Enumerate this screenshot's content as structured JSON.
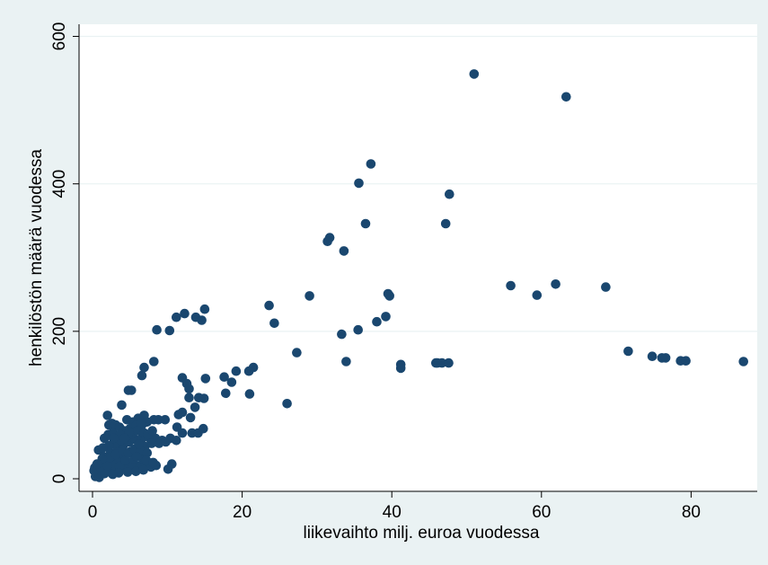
{
  "chart_data": {
    "type": "scatter",
    "title": "",
    "xlabel": "liikevaihto milj. euroa vuodessa",
    "ylabel": "henkilöstön määrä vuodessa",
    "xlim": [
      0,
      90
    ],
    "ylim": [
      0,
      600
    ],
    "x_ticks": [
      0,
      20,
      40,
      60,
      80
    ],
    "y_ticks": [
      0,
      200,
      400,
      600
    ],
    "x_tick_labels": [
      "0",
      "20",
      "40",
      "60",
      "80"
    ],
    "y_tick_labels": [
      "0",
      "200",
      "400",
      "600"
    ],
    "grid": true,
    "colors": {
      "points": "#1a476f",
      "background": "#eaf2f3",
      "plot_area": "#ffffff"
    },
    "series": [
      {
        "points": [
          [
            51.0,
            549
          ],
          [
            63.3,
            518
          ],
          [
            37.2,
            427
          ],
          [
            35.6,
            401
          ],
          [
            47.7,
            386
          ],
          [
            47.2,
            346
          ],
          [
            36.5,
            346
          ],
          [
            31.7,
            327
          ],
          [
            31.4,
            322
          ],
          [
            33.6,
            309
          ],
          [
            55.9,
            262
          ],
          [
            59.4,
            249
          ],
          [
            61.9,
            264
          ],
          [
            68.6,
            260
          ],
          [
            39.5,
            251
          ],
          [
            39.7,
            248
          ],
          [
            29.0,
            248
          ],
          [
            23.6,
            235
          ],
          [
            24.3,
            211
          ],
          [
            39.2,
            220
          ],
          [
            38.0,
            213
          ],
          [
            35.5,
            202
          ],
          [
            33.3,
            196
          ],
          [
            15.0,
            230
          ],
          [
            12.3,
            224
          ],
          [
            11.2,
            219
          ],
          [
            13.8,
            219
          ],
          [
            14.6,
            215
          ],
          [
            8.6,
            202
          ],
          [
            10.3,
            201
          ],
          [
            71.6,
            173
          ],
          [
            74.8,
            166
          ],
          [
            76.1,
            164
          ],
          [
            76.6,
            164
          ],
          [
            78.6,
            160
          ],
          [
            79.3,
            160
          ],
          [
            87.0,
            159
          ],
          [
            45.9,
            157
          ],
          [
            46.7,
            157
          ],
          [
            47.6,
            157
          ],
          [
            46.1,
            157
          ],
          [
            41.2,
            155
          ],
          [
            41.2,
            150
          ],
          [
            33.9,
            159
          ],
          [
            27.3,
            171
          ],
          [
            21.5,
            151
          ],
          [
            20.9,
            146
          ],
          [
            19.2,
            146
          ],
          [
            17.6,
            138
          ],
          [
            18.6,
            131
          ],
          [
            17.8,
            116
          ],
          [
            21.0,
            115
          ],
          [
            26.0,
            102
          ],
          [
            6.9,
            151
          ],
          [
            8.2,
            159
          ],
          [
            6.6,
            140
          ],
          [
            4.8,
            120
          ],
          [
            5.2,
            120
          ],
          [
            12.0,
            137
          ],
          [
            12.6,
            129
          ],
          [
            12.9,
            122
          ],
          [
            14.2,
            110
          ],
          [
            14.9,
            109
          ],
          [
            15.1,
            136
          ],
          [
            12.9,
            110
          ],
          [
            13.7,
            97
          ],
          [
            13.1,
            83
          ],
          [
            12.0,
            90
          ],
          [
            11.5,
            87
          ],
          [
            11.3,
            70
          ],
          [
            12.0,
            62
          ],
          [
            13.3,
            62
          ],
          [
            14.1,
            62
          ],
          [
            14.8,
            68
          ],
          [
            3.9,
            100
          ],
          [
            2.0,
            86
          ],
          [
            2.6,
            75
          ],
          [
            2.2,
            73
          ],
          [
            3.1,
            73
          ],
          [
            8.2,
            80
          ],
          [
            8.8,
            80
          ],
          [
            9.7,
            80
          ],
          [
            6.9,
            86
          ],
          [
            6.1,
            82
          ],
          [
            4.6,
            80
          ],
          [
            5.4,
            77
          ],
          [
            7.3,
            77
          ],
          [
            6.6,
            73
          ],
          [
            1.6,
            55
          ],
          [
            2.1,
            60
          ],
          [
            2.7,
            62
          ],
          [
            3.6,
            70
          ],
          [
            4.2,
            65
          ],
          [
            5.0,
            68
          ],
          [
            5.8,
            72
          ],
          [
            6.5,
            75
          ],
          [
            0.8,
            39
          ],
          [
            1.5,
            30
          ],
          [
            2.4,
            35
          ],
          [
            3.3,
            40
          ],
          [
            4.1,
            45
          ],
          [
            4.9,
            50
          ],
          [
            5.7,
            53
          ],
          [
            6.6,
            55
          ],
          [
            7.5,
            56
          ],
          [
            8.4,
            55
          ],
          [
            9.3,
            52
          ],
          [
            10.4,
            55
          ],
          [
            11.2,
            52
          ],
          [
            8.9,
            48
          ],
          [
            9.8,
            50
          ],
          [
            2.8,
            30
          ],
          [
            3.5,
            28
          ],
          [
            4.2,
            33
          ],
          [
            5.1,
            37
          ],
          [
            6.0,
            41
          ],
          [
            7.0,
            44
          ],
          [
            7.9,
            48
          ],
          [
            1.1,
            20
          ],
          [
            1.9,
            22
          ],
          [
            2.6,
            25
          ],
          [
            3.4,
            22
          ],
          [
            4.3,
            20
          ],
          [
            5.2,
            18
          ],
          [
            6.1,
            17
          ],
          [
            7.0,
            18
          ],
          [
            7.8,
            16
          ],
          [
            8.5,
            18
          ],
          [
            10.6,
            20
          ],
          [
            10.1,
            13
          ],
          [
            0.3,
            15
          ],
          [
            0.5,
            8
          ],
          [
            0.4,
            3
          ],
          [
            0.7,
            5
          ],
          [
            1.2,
            10
          ],
          [
            1.8,
            12
          ],
          [
            2.5,
            14
          ],
          [
            3.2,
            12
          ],
          [
            3.9,
            14
          ],
          [
            4.6,
            12
          ],
          [
            5.4,
            15
          ],
          [
            6.3,
            15
          ],
          [
            0.9,
            2
          ],
          [
            1.6,
            7
          ],
          [
            2.9,
            18
          ],
          [
            3.6,
            17
          ],
          [
            4.4,
            25
          ],
          [
            5.5,
            26
          ],
          [
            6.6,
            28
          ],
          [
            3.0,
            48
          ],
          [
            3.8,
            52
          ],
          [
            4.5,
            57
          ],
          [
            5.3,
            61
          ],
          [
            6.0,
            65
          ],
          [
            6.9,
            62
          ],
          [
            2.2,
            45
          ],
          [
            1.4,
            42
          ],
          [
            0.2,
            11
          ],
          [
            1.0,
            16
          ],
          [
            2.0,
            18
          ],
          [
            2.3,
            29
          ],
          [
            3.1,
            33
          ],
          [
            4.0,
            38
          ],
          [
            4.8,
            35
          ],
          [
            5.6,
            40
          ],
          [
            6.4,
            38
          ],
          [
            7.3,
            35
          ],
          [
            3.7,
            60
          ],
          [
            4.9,
            63
          ],
          [
            7.4,
            60
          ],
          [
            8.0,
            65
          ],
          [
            4.3,
            55
          ],
          [
            2.8,
            55
          ],
          [
            6.2,
            47
          ],
          [
            5.9,
            30
          ],
          [
            7.2,
            25
          ],
          [
            8.1,
            22
          ],
          [
            1.3,
            27
          ],
          [
            0.6,
            20
          ],
          [
            3.5,
            8
          ],
          [
            2.7,
            6
          ],
          [
            4.7,
            9
          ],
          [
            5.8,
            10
          ],
          [
            6.8,
            12
          ]
        ]
      }
    ]
  }
}
